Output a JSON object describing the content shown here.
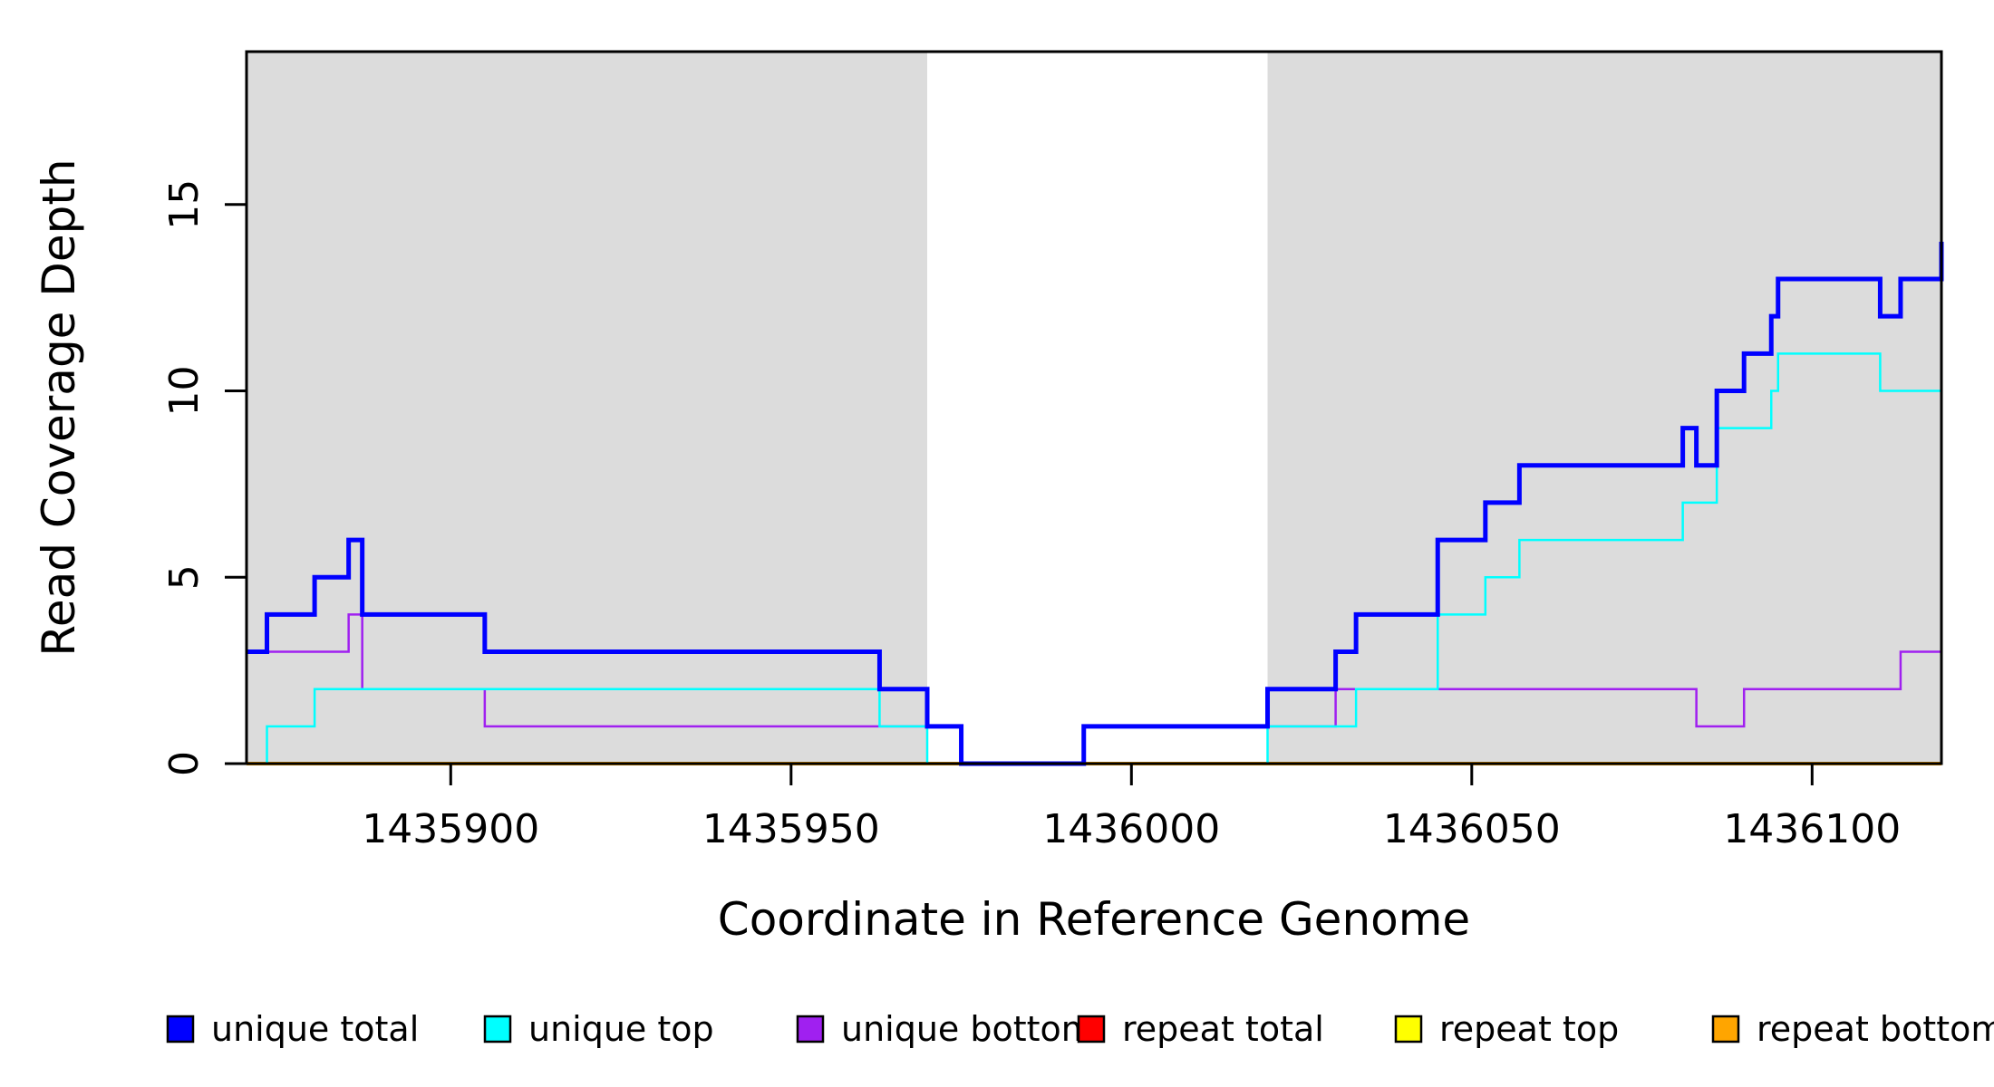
{
  "figure": {
    "background": "#ffffff",
    "plot_border_color": "#000000"
  },
  "axes": {
    "xlabel": "Coordinate in Reference Genome",
    "ylabel": "Read Coverage Depth"
  },
  "chart_data": {
    "type": "line",
    "step": "hv",
    "title": "",
    "xlabel": "Coordinate in Reference Genome",
    "ylabel": "Read Coverage Depth",
    "xlim": [
      1435870,
      1436119
    ],
    "ylim": [
      0,
      19.1
    ],
    "x_ticks": [
      1435900,
      1435950,
      1436000,
      1436050,
      1436100
    ],
    "y_ticks": [
      0,
      5,
      10,
      15
    ],
    "grid": false,
    "legend_position": "bottom",
    "shaded_bands": {
      "color": "#DCDCDC",
      "regions": [
        [
          1435870,
          1435970
        ],
        [
          1436020,
          1436119
        ]
      ]
    },
    "series": [
      {
        "name": "unique total",
        "color": "#0000FF",
        "line_width": 5,
        "points": [
          [
            1435870,
            3
          ],
          [
            1435873,
            4
          ],
          [
            1435880,
            5
          ],
          [
            1435885,
            6
          ],
          [
            1435887,
            4
          ],
          [
            1435905,
            3
          ],
          [
            1435963,
            2
          ],
          [
            1435970,
            1
          ],
          [
            1435975,
            0
          ],
          [
            1435993,
            1
          ],
          [
            1436020,
            2
          ],
          [
            1436030,
            3
          ],
          [
            1436033,
            4
          ],
          [
            1436045,
            6
          ],
          [
            1436052,
            7
          ],
          [
            1436057,
            8
          ],
          [
            1436081,
            9
          ],
          [
            1436083,
            8
          ],
          [
            1436086,
            10
          ],
          [
            1436090,
            11
          ],
          [
            1436094,
            12
          ],
          [
            1436095,
            13
          ],
          [
            1436110,
            12
          ],
          [
            1436113,
            13
          ],
          [
            1436119,
            14
          ]
        ]
      },
      {
        "name": "unique top",
        "color": "#00FFFF",
        "line_width": 2.5,
        "points": [
          [
            1435870,
            0
          ],
          [
            1435873,
            1
          ],
          [
            1435880,
            2
          ],
          [
            1435963,
            1
          ],
          [
            1435970,
            0
          ],
          [
            1436020,
            1
          ],
          [
            1436033,
            2
          ],
          [
            1436045,
            4
          ],
          [
            1436052,
            5
          ],
          [
            1436057,
            6
          ],
          [
            1436081,
            7
          ],
          [
            1436086,
            9
          ],
          [
            1436094,
            10
          ],
          [
            1436095,
            11
          ],
          [
            1436110,
            10
          ],
          [
            1436119,
            11
          ]
        ]
      },
      {
        "name": "unique bottom",
        "color": "#A020F0",
        "line_width": 2.5,
        "points": [
          [
            1435870,
            3
          ],
          [
            1435885,
            4
          ],
          [
            1435887,
            2
          ],
          [
            1435905,
            1
          ],
          [
            1435975,
            0
          ],
          [
            1435993,
            1
          ],
          [
            1436030,
            2
          ],
          [
            1436083,
            1
          ],
          [
            1436090,
            2
          ],
          [
            1436113,
            3
          ]
        ]
      },
      {
        "name": "repeat total",
        "color": "#FF0000",
        "line_width": 2.5,
        "points": [
          [
            1435870,
            0
          ]
        ]
      },
      {
        "name": "repeat top",
        "color": "#FFFF00",
        "line_width": 2.5,
        "points": [
          [
            1435870,
            0
          ]
        ]
      },
      {
        "name": "repeat bottom",
        "color": "#FFA500",
        "line_width": 4,
        "points": [
          [
            1435870,
            0
          ]
        ]
      }
    ]
  }
}
